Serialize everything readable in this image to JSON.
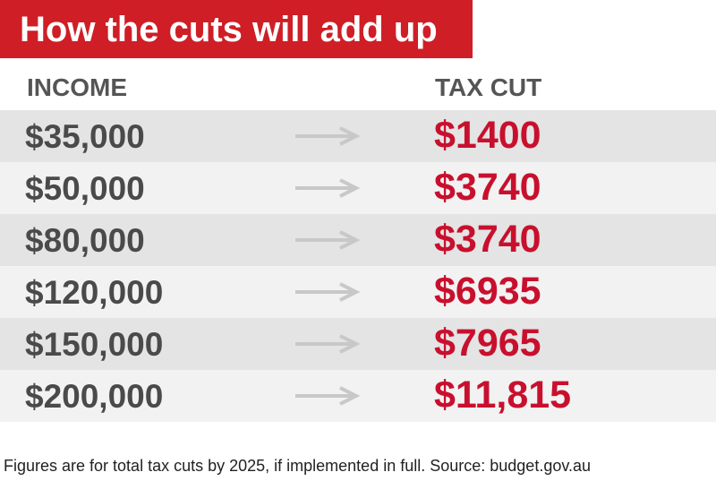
{
  "title": "How the cuts will add up",
  "colors": {
    "title_bg": "#cf1e26",
    "tax_value": "#c8102e",
    "income_text": "#4a4a4a",
    "row_dark": "#e4e4e4",
    "row_light": "#f2f2f2",
    "arrow": "#c8c8c8"
  },
  "chart_data": {
    "type": "table",
    "title": "How the cuts will add up",
    "columns": [
      "INCOME",
      "TAX CUT"
    ],
    "rows": [
      {
        "income": "$35,000",
        "tax_cut": "$1400"
      },
      {
        "income": "$50,000",
        "tax_cut": "$3740"
      },
      {
        "income": "$80,000",
        "tax_cut": "$3740"
      },
      {
        "income": "$120,000",
        "tax_cut": "$6935"
      },
      {
        "income": "$150,000",
        "tax_cut": "$7965"
      },
      {
        "income": "$200,000",
        "tax_cut": "$11,815"
      }
    ],
    "income_values": [
      35000,
      50000,
      80000,
      120000,
      150000,
      200000
    ],
    "tax_cut_values": [
      1400,
      3740,
      3740,
      6935,
      7965,
      11815
    ]
  },
  "footnote": "Figures are for total tax cuts by 2025, if implemented in full. Source: budget.gov.au"
}
